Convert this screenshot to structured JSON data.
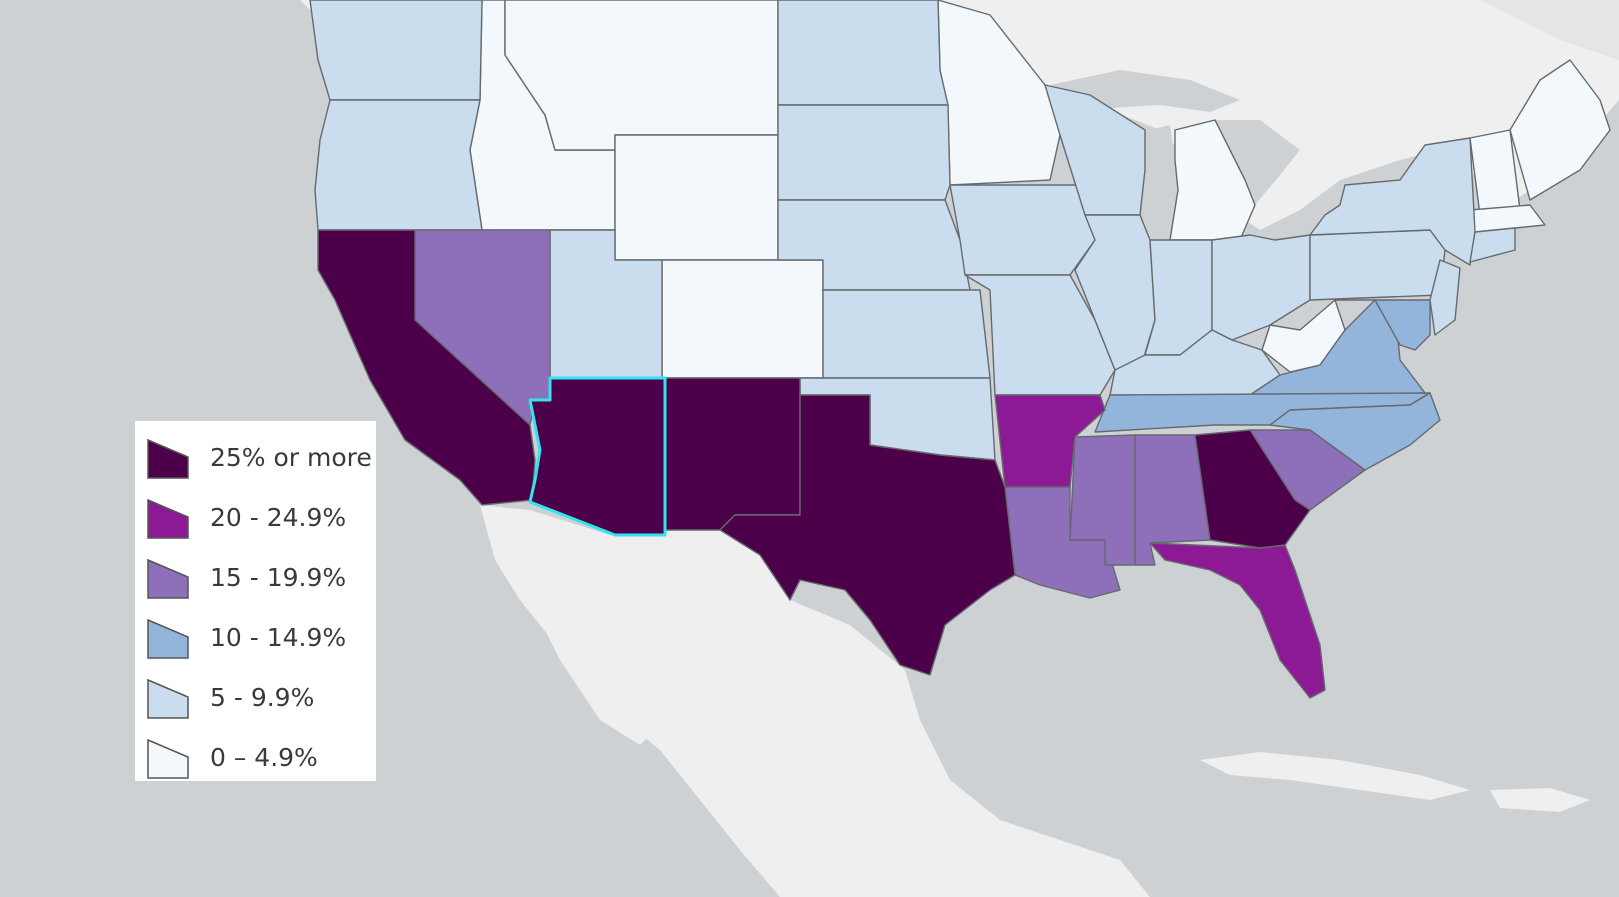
{
  "colors": {
    "ocean": "#cdd1d4",
    "land": "#f1f1f1",
    "border": "#666a6e",
    "highlight": "#33e4ef"
  },
  "legend": {
    "items": [
      {
        "label": "25% or more",
        "color": "#4c004a"
      },
      {
        "label": "20 - 24.9%",
        "color": "#8b1a94"
      },
      {
        "label": "15 - 19.9%",
        "color": "#8e6fba"
      },
      {
        "label": "10 - 14.9%",
        "color": "#93b4db"
      },
      {
        "label": "5 - 9.9%",
        "color": "#c9ddee"
      },
      {
        "label": "0 – 4.9%",
        "color": "#f3f8fc"
      }
    ]
  },
  "highlighted_state": "arizona"
}
